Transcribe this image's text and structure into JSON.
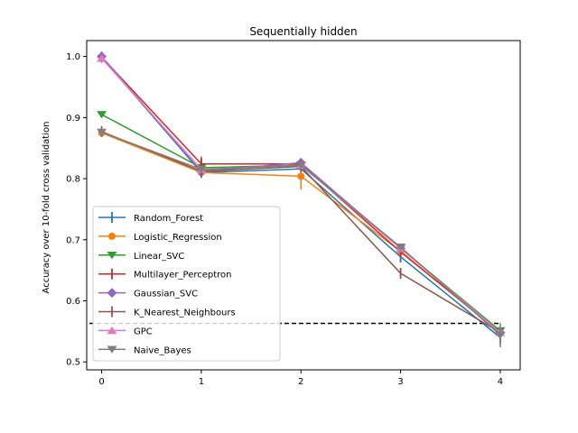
{
  "chart_data": {
    "type": "line",
    "title": "Sequentially hidden",
    "xlabel": "",
    "ylabel": "Accuracy over 10-fold cross validation",
    "x": [
      0,
      1,
      2,
      3,
      4
    ],
    "xticks": [
      "0",
      "1",
      "2",
      "3",
      "4"
    ],
    "yticks": [
      "0.5",
      "0.6",
      "0.7",
      "0.8",
      "0.9",
      "1.0"
    ],
    "xlim": [
      -0.15,
      4.2
    ],
    "ylim": [
      0.487,
      1.026
    ],
    "baseline": {
      "value": 0.563,
      "style": "dashed",
      "color": "#000000"
    },
    "legend_position": "lower-left",
    "series": [
      {
        "name": "Random_Forest",
        "color": "#1f77b4",
        "marker": "vline",
        "values": [
          0.999,
          0.81,
          0.816,
          0.672,
          0.54
        ],
        "err": [
          0,
          0.008,
          0.008,
          0.009,
          0.012
        ]
      },
      {
        "name": "Logistic_Regression",
        "color": "#ff7f0e",
        "marker": "circle",
        "values": [
          0.875,
          0.81,
          0.804,
          0.681,
          0.547
        ],
        "err": [
          0,
          0.006,
          0.022,
          0.006,
          0.005
        ]
      },
      {
        "name": "Linear_SVC",
        "color": "#2ca02c",
        "marker": "tri-down",
        "values": [
          0.905,
          0.818,
          0.822,
          0.686,
          0.551
        ],
        "err": [
          0,
          0.004,
          0.005,
          0.004,
          0.004
        ]
      },
      {
        "name": "Multilayer_Perceptron",
        "color": "#d62728",
        "marker": "vline",
        "values": [
          0.999,
          0.824,
          0.824,
          0.68,
          0.548
        ],
        "err": [
          0,
          0.012,
          0.006,
          0.006,
          0.006
        ]
      },
      {
        "name": "Gaussian_SVC",
        "color": "#9467bd",
        "marker": "diamond",
        "values": [
          1.0,
          0.812,
          0.826,
          0.686,
          0.548
        ],
        "err": [
          0,
          0.004,
          0.004,
          0.004,
          0.004
        ]
      },
      {
        "name": "K_Nearest_Neighbours",
        "color": "#8c564b",
        "marker": "vline",
        "values": [
          0.877,
          0.812,
          0.82,
          0.645,
          0.548
        ],
        "err": [
          0,
          0.004,
          0.004,
          0.004,
          0.004
        ]
      },
      {
        "name": "GPC",
        "color": "#e377c2",
        "marker": "tri-up",
        "values": [
          0.997,
          0.815,
          0.822,
          0.686,
          0.548
        ],
        "err": [
          0,
          0.004,
          0.004,
          0.004,
          0.004
        ]
      },
      {
        "name": "Naive_Bayes",
        "color": "#7f7f7f",
        "marker": "tri-down",
        "values": [
          0.876,
          0.815,
          0.822,
          0.688,
          0.544
        ],
        "err": [
          0,
          0.004,
          0.004,
          0.006,
          0.02
        ]
      }
    ]
  }
}
